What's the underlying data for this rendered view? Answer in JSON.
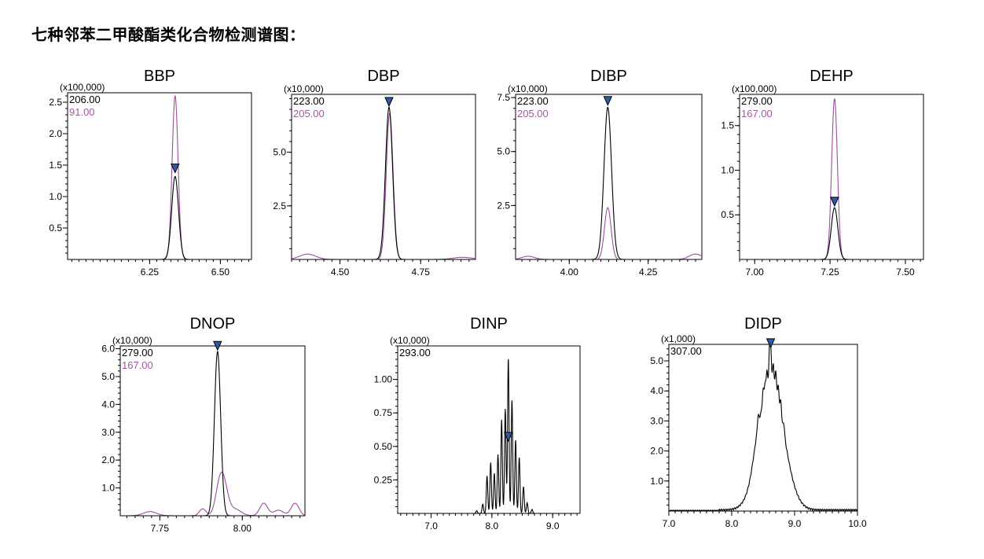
{
  "page": {
    "title": "七种邻苯二甲酸酯类化合物检测谱图："
  },
  "colors": {
    "black_trace": "#000000",
    "magenta_trace": "#9b4f9e",
    "marker": "#2f5aa8",
    "label_magenta": "#a05aa0"
  },
  "chart_data": [
    {
      "type": "line",
      "title": "BBP",
      "multiplier": "(x100,000)",
      "xlim": [
        5.96,
        6.61
      ],
      "ylim": [
        0,
        2.65
      ],
      "xticks": [
        6.25,
        6.5
      ],
      "xtick_labels": [
        "6.25",
        "6.50"
      ],
      "yticks": [
        0.5,
        1.0,
        1.5,
        2.0,
        2.5
      ],
      "ytick_labels": [
        "0.5",
        "1.0",
        "1.5",
        "2.0",
        "2.5"
      ],
      "peak": {
        "x": 6.34,
        "black_height": 1.32,
        "magenta_height": 2.6,
        "width": 0.012
      },
      "marker": {
        "x": 6.34,
        "y": 1.38
      },
      "series": [
        {
          "name": "206.00",
          "color": "black"
        },
        {
          "name": "91.00",
          "color": "magenta"
        }
      ]
    },
    {
      "type": "line",
      "title": "DBP",
      "multiplier": "(x10,000)",
      "xlim": [
        4.35,
        4.92
      ],
      "ylim": [
        0,
        7.7
      ],
      "xticks": [
        4.5,
        4.75
      ],
      "xtick_labels": [
        "4.50",
        "4.75"
      ],
      "yticks": [
        2.5,
        5.0
      ],
      "ytick_labels": [
        "2.5",
        "5.0"
      ],
      "peak": {
        "x": 4.652,
        "black_height": 7.1,
        "magenta_height": 6.8,
        "width": 0.011
      },
      "marker": {
        "x": 4.652,
        "y": 7.15
      },
      "series": [
        {
          "name": "223.00",
          "color": "black"
        },
        {
          "name": "205.00",
          "color": "magenta"
        }
      ]
    },
    {
      "type": "line",
      "title": "DIBP",
      "multiplier": "(x10,000)",
      "xlim": [
        3.83,
        4.42
      ],
      "ylim": [
        0,
        7.65
      ],
      "xticks": [
        4.0,
        4.25
      ],
      "xtick_labels": [
        "4.00",
        "4.25"
      ],
      "yticks": [
        2.5,
        5.0,
        7.5
      ],
      "ytick_labels": [
        "2.5",
        "5.0",
        "7.5"
      ],
      "peak": {
        "x": 4.122,
        "black_height": 7.05,
        "magenta_height": 2.4,
        "width": 0.012
      },
      "marker": {
        "x": 4.122,
        "y": 7.15
      },
      "series": [
        {
          "name": "223.00",
          "color": "black"
        },
        {
          "name": "205.00",
          "color": "magenta"
        }
      ]
    },
    {
      "type": "line",
      "title": "DEHP",
      "multiplier": "(x100,000)",
      "xlim": [
        6.95,
        7.56
      ],
      "ylim": [
        0,
        1.85
      ],
      "xticks": [
        7.0,
        7.25,
        7.5
      ],
      "xtick_labels": [
        "7.00",
        "7.25",
        "7.50"
      ],
      "yticks": [
        0.5,
        1.0,
        1.5
      ],
      "ytick_labels": [
        "0.5",
        "1.0",
        "1.5"
      ],
      "peak": {
        "x": 7.265,
        "black_height": 0.58,
        "magenta_height": 1.8,
        "width": 0.011
      },
      "marker": {
        "x": 7.265,
        "y": 0.6
      },
      "series": [
        {
          "name": "279.00",
          "color": "black"
        },
        {
          "name": "167.00",
          "color": "magenta"
        }
      ]
    },
    {
      "type": "line",
      "title": "DNOP",
      "multiplier": "(x10,000)",
      "xlim": [
        7.63,
        8.19
      ],
      "ylim": [
        0,
        6.1
      ],
      "xticks": [
        7.75,
        8.0
      ],
      "xtick_labels": [
        "7.75",
        "8.00"
      ],
      "yticks": [
        1.0,
        2.0,
        3.0,
        4.0,
        5.0,
        6.0
      ],
      "ytick_labels": [
        "1.0",
        "2.0",
        "3.0",
        "4.0",
        "5.0",
        "6.0"
      ],
      "peak": {
        "x": 7.925,
        "black_height": 5.9,
        "magenta_height": 1.0,
        "width": 0.01
      },
      "marker": {
        "x": 7.925,
        "y": 5.95
      },
      "series": [
        {
          "name": "279.00",
          "color": "black"
        },
        {
          "name": "167.00",
          "color": "magenta"
        }
      ]
    },
    {
      "type": "line",
      "title": "DINP",
      "multiplier": "(x10,000)",
      "xlim": [
        6.45,
        9.45
      ],
      "ylim": [
        0,
        1.25
      ],
      "xticks": [
        7.0,
        8.0,
        9.0
      ],
      "xtick_labels": [
        "7.0",
        "8.0",
        "9.0"
      ],
      "yticks": [
        0.25,
        0.5,
        0.75,
        1.0
      ],
      "ytick_labels": [
        "0.25",
        "0.50",
        "0.75",
        "1.00"
      ],
      "peak": {
        "x": 8.27,
        "black_height": 1.16,
        "width": 0.02
      },
      "marker": {
        "x": 8.27,
        "y": 0.54
      },
      "series": [
        {
          "name": "293.00",
          "color": "black"
        }
      ]
    },
    {
      "type": "line",
      "title": "DIDP",
      "multiplier": "(x1,000)",
      "xlim": [
        7.0,
        10.0
      ],
      "ylim": [
        0,
        5.55
      ],
      "xticks": [
        7.0,
        8.0,
        9.0,
        10.0
      ],
      "xtick_labels": [
        "7.0",
        "8.0",
        "9.0",
        "10.0"
      ],
      "yticks": [
        1.0,
        2.0,
        3.0,
        4.0,
        5.0
      ],
      "ytick_labels": [
        "1.0",
        "2.0",
        "3.0",
        "4.0",
        "5.0"
      ],
      "peak": {
        "x": 8.62,
        "black_height": 5.4,
        "width": 0.2
      },
      "marker": {
        "x": 8.62,
        "y": 5.45
      },
      "series": [
        {
          "name": "307.00",
          "color": "black"
        }
      ]
    }
  ]
}
